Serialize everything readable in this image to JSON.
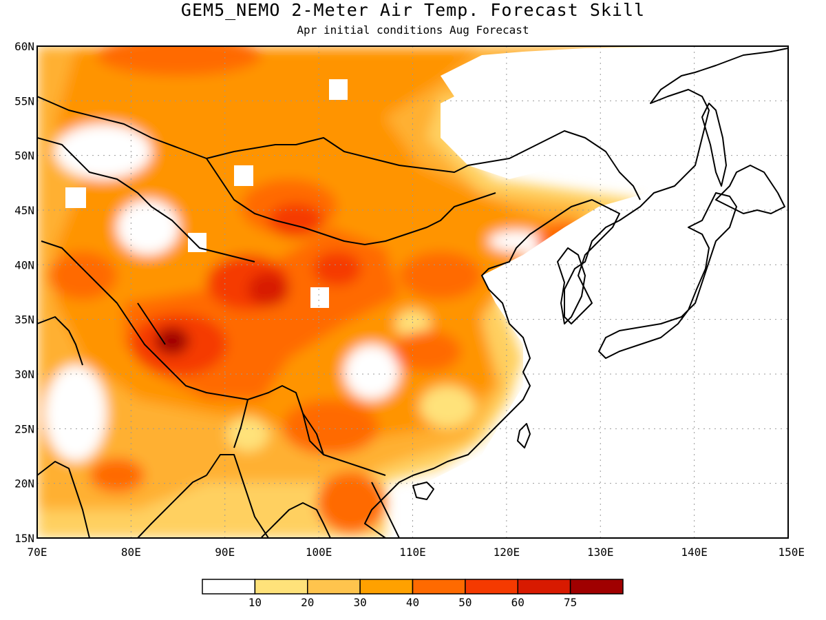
{
  "header": {
    "title": "GEM5_NEMO 2-Meter Air Temp. Forecast Skill",
    "subtitle": "Apr initial conditions  Aug Forecast"
  },
  "map": {
    "lon_range": [
      70,
      150
    ],
    "lat_range": [
      15,
      60
    ],
    "lat_ticks": [
      "60N",
      "55N",
      "50N",
      "45N",
      "40N",
      "35N",
      "30N",
      "25N",
      "20N",
      "15N"
    ],
    "lon_ticks": [
      "70E",
      "80E",
      "90E",
      "100E",
      "110E",
      "120E",
      "130E",
      "140E",
      "150E"
    ],
    "gridlines": true
  },
  "colorbar": {
    "colors": [
      "#ffffff",
      "#ffe27a",
      "#ffc44d",
      "#ffa100",
      "#ff6a00",
      "#f53a00",
      "#d81a00",
      "#a00000"
    ],
    "labels": [
      "10",
      "20",
      "30",
      "40",
      "50",
      "60",
      "75"
    ]
  }
}
